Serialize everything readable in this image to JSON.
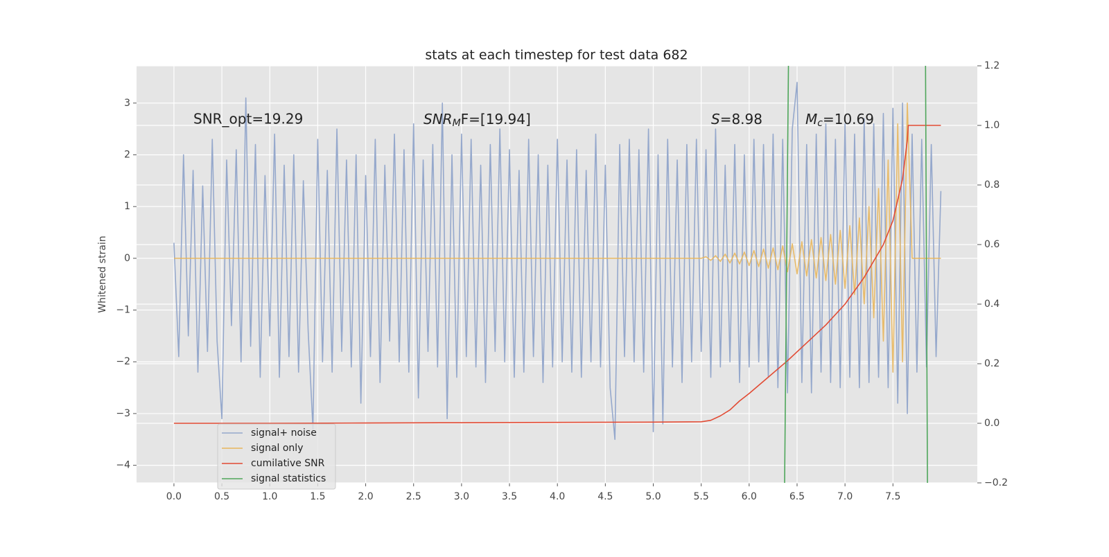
{
  "chart_data": {
    "type": "line",
    "title": "stats at each timestep for test data 682",
    "ylabel": "Whitened strain",
    "annotations": [
      {
        "text": "SNR_opt=19.29"
      },
      {
        "main": "SNR",
        "sub": "M",
        "rest": "F=[19.94]"
      },
      {
        "main": "S",
        "rest": "=8.98"
      },
      {
        "main": "M",
        "sub": "c",
        "rest": "=10.69"
      }
    ],
    "xlim": [
      -0.39,
      8.38
    ],
    "ylim": [
      -4.34,
      3.72
    ],
    "y2lim": [
      -0.2,
      1.2
    ],
    "xticks": [
      {
        "value": 0,
        "label": "0.0"
      },
      0.5,
      {
        "value": 1,
        "label": "1.0"
      },
      1.5,
      {
        "value": 2,
        "label": "2.0"
      },
      2.5,
      {
        "value": 3,
        "label": "3.0"
      },
      3.5,
      {
        "value": 4,
        "label": "4.0"
      },
      4.5,
      {
        "value": 5,
        "label": "5.0"
      },
      5.5,
      {
        "value": 6,
        "label": "6.0"
      },
      6.5,
      {
        "value": 7,
        "label": "7.0"
      },
      7.5
    ],
    "yticks": [
      {
        "value": -4,
        "label": "−4"
      },
      {
        "value": -3,
        "label": "−3"
      },
      {
        "value": -2,
        "label": "−2"
      },
      {
        "value": -1,
        "label": "−1"
      },
      0,
      1,
      2,
      3
    ],
    "y2ticks": [
      {
        "value": -0.2,
        "label": "−0.2"
      },
      {
        "value": 0,
        "label": "0.0"
      },
      0.2,
      0.4,
      0.6,
      0.8,
      {
        "value": 1,
        "label": "1.0"
      },
      1.2
    ],
    "grid": true,
    "legend": "lower left",
    "x": [
      0,
      0.05,
      0.1,
      0.15,
      0.2,
      0.25,
      0.3,
      0.35,
      0.4,
      0.45,
      0.5,
      0.55,
      0.6,
      0.65,
      0.7,
      0.75,
      0.8,
      0.85,
      0.9,
      0.95,
      1,
      1.05,
      1.1,
      1.15,
      1.2,
      1.25,
      1.3,
      1.35,
      1.4,
      1.45,
      1.5,
      1.55,
      1.6,
      1.65,
      1.7,
      1.75,
      1.8,
      1.85,
      1.9,
      1.95,
      2,
      2.05,
      2.1,
      2.15,
      2.2,
      2.25,
      2.3,
      2.35,
      2.4,
      2.45,
      2.5,
      2.55,
      2.6,
      2.65,
      2.7,
      2.75,
      2.8,
      2.85,
      2.9,
      2.95,
      3,
      3.05,
      3.1,
      3.15,
      3.2,
      3.25,
      3.3,
      3.35,
      3.4,
      3.45,
      3.5,
      3.55,
      3.6,
      3.65,
      3.7,
      3.75,
      3.8,
      3.85,
      3.9,
      3.95,
      4,
      4.05,
      4.1,
      4.15,
      4.2,
      4.25,
      4.3,
      4.35,
      4.4,
      4.45,
      4.5,
      4.55,
      4.6,
      4.65,
      4.7,
      4.75,
      4.8,
      4.85,
      4.9,
      4.95,
      5,
      5.05,
      5.1,
      5.15,
      5.2,
      5.25,
      5.3,
      5.35,
      5.4,
      5.45,
      5.5,
      5.55,
      5.6,
      5.65,
      5.7,
      5.75,
      5.8,
      5.85,
      5.9,
      5.95,
      6,
      6.05,
      6.1,
      6.15,
      6.2,
      6.25,
      6.3,
      6.35,
      6.4,
      6.45,
      6.5,
      6.55,
      6.6,
      6.65,
      6.7,
      6.75,
      6.8,
      6.85,
      6.9,
      6.95,
      7,
      7.05,
      7.1,
      7.15,
      7.2,
      7.25,
      7.3,
      7.35,
      7.4,
      7.45,
      7.5,
      7.55,
      7.6,
      7.65,
      7.7,
      7.75,
      7.8,
      7.85,
      7.9,
      7.95,
      8
    ],
    "series": [
      {
        "name": "signal+ noise",
        "color": "#95a8cc",
        "values": [
          0.3,
          -1.9,
          2.0,
          -1.5,
          1.7,
          -2.2,
          1.4,
          -1.8,
          2.3,
          -1.6,
          -3.1,
          1.9,
          -1.3,
          2.1,
          -2.0,
          3.1,
          -1.7,
          2.2,
          -2.3,
          1.6,
          -1.5,
          2.4,
          -2.3,
          1.8,
          -1.9,
          2.0,
          -2.2,
          1.5,
          -1.4,
          -3.3,
          2.3,
          -2.0,
          1.7,
          -2.2,
          2.5,
          -1.8,
          1.9,
          -2.1,
          2.0,
          -2.8,
          1.6,
          -1.9,
          2.3,
          -2.4,
          1.8,
          -1.6,
          2.4,
          -2.0,
          2.1,
          -2.2,
          2.6,
          -2.7,
          1.9,
          -1.8,
          2.2,
          -2.1,
          3.0,
          -3.1,
          2.0,
          -2.3,
          2.4,
          -1.9,
          2.3,
          -2.1,
          1.8,
          -2.4,
          2.2,
          -1.8,
          2.5,
          -2.0,
          2.1,
          -2.3,
          1.7,
          -2.2,
          2.3,
          -1.9,
          2.0,
          -2.4,
          1.8,
          -2.1,
          2.3,
          -2.0,
          1.9,
          -2.2,
          2.1,
          -2.3,
          1.7,
          -2.0,
          2.4,
          -2.1,
          1.8,
          -2.5,
          -3.5,
          2.2,
          -1.9,
          2.3,
          -2.0,
          2.1,
          -2.2,
          2.5,
          -3.35,
          2.0,
          -3.2,
          2.3,
          -2.1,
          1.9,
          -2.4,
          2.2,
          -2.0,
          2.3,
          -1.8,
          2.1,
          -2.3,
          2.5,
          -2.1,
          1.8,
          -2.0,
          2.2,
          -2.4,
          2.0,
          -2.1,
          2.3,
          -2.0,
          2.2,
          -2.3,
          2.4,
          -2.5,
          2.3,
          -2.6,
          2.5,
          3.4,
          -2.4,
          2.2,
          -2.6,
          2.4,
          -2.2,
          2.6,
          -2.4,
          2.3,
          -2.5,
          2.6,
          -2.3,
          2.4,
          -2.5,
          2.7,
          -2.4,
          2.6,
          -2.3,
          2.8,
          -2.5,
          2.9,
          -2.8,
          3.0,
          -3.0,
          2.4,
          -2.2,
          2.3,
          -2.1,
          2.2,
          -1.9,
          1.3
        ]
      },
      {
        "name": "signal only",
        "color": "#e8b65c",
        "values": [
          0,
          0,
          0,
          0,
          0,
          0,
          0,
          0,
          0,
          0,
          0,
          0,
          0,
          0,
          0,
          0,
          0,
          0,
          0,
          0,
          0,
          0,
          0,
          0,
          0,
          0,
          0,
          0,
          0,
          0,
          0,
          0,
          0,
          0,
          0,
          0,
          0,
          0,
          0,
          0,
          0,
          0,
          0,
          0,
          0,
          0,
          0,
          0,
          0,
          0,
          0,
          0,
          0,
          0,
          0,
          0,
          0,
          0,
          0,
          0,
          0,
          0,
          0,
          0,
          0,
          0,
          0,
          0,
          0,
          0,
          0,
          0,
          0,
          0,
          0,
          0,
          0,
          0,
          0,
          0,
          0,
          0,
          0,
          0,
          0,
          0,
          0,
          0,
          0,
          0,
          0,
          0,
          0,
          0,
          0,
          0,
          0,
          0,
          0,
          0,
          0,
          0,
          0,
          0,
          0,
          0,
          0,
          0,
          0,
          0,
          0,
          0.03,
          -0.04,
          0.05,
          -0.06,
          0.08,
          -0.09,
          0.1,
          -0.11,
          0.12,
          -0.14,
          0.15,
          -0.16,
          0.18,
          -0.19,
          0.2,
          -0.22,
          0.24,
          -0.26,
          0.28,
          -0.3,
          0.32,
          -0.34,
          0.36,
          -0.38,
          0.4,
          -0.43,
          0.46,
          -0.5,
          0.54,
          -0.58,
          0.63,
          -0.7,
          0.78,
          -0.88,
          1.0,
          -1.15,
          1.35,
          -1.6,
          1.9,
          -2.2,
          2.6,
          -2.0,
          3.0,
          0,
          0,
          0,
          0,
          0,
          0,
          0
        ]
      },
      {
        "name": "cumilative SNR",
        "color": "#e24a33",
        "axis": "y2",
        "x": [
          0,
          1,
          2,
          3,
          4,
          5,
          5.5,
          5.6,
          5.7,
          5.8,
          5.9,
          6.0,
          6.2,
          6.4,
          6.6,
          6.8,
          7.0,
          7.2,
          7.4,
          7.5,
          7.6,
          7.65,
          7.66,
          8.0
        ],
        "values": [
          0,
          0,
          0.001,
          0.002,
          0.003,
          0.004,
          0.005,
          0.01,
          0.025,
          0.045,
          0.075,
          0.1,
          0.155,
          0.21,
          0.27,
          0.33,
          0.4,
          0.49,
          0.6,
          0.68,
          0.82,
          0.95,
          1.0,
          1.0
        ]
      },
      {
        "name": "signal statistics",
        "color": "#4ea65a",
        "axis": "y2",
        "x": [
          6.37,
          6.41,
          7.1,
          7.86,
          7.84
        ],
        "values": [
          -0.2,
          1.2,
          null,
          -0.2,
          1.2
        ]
      }
    ]
  }
}
